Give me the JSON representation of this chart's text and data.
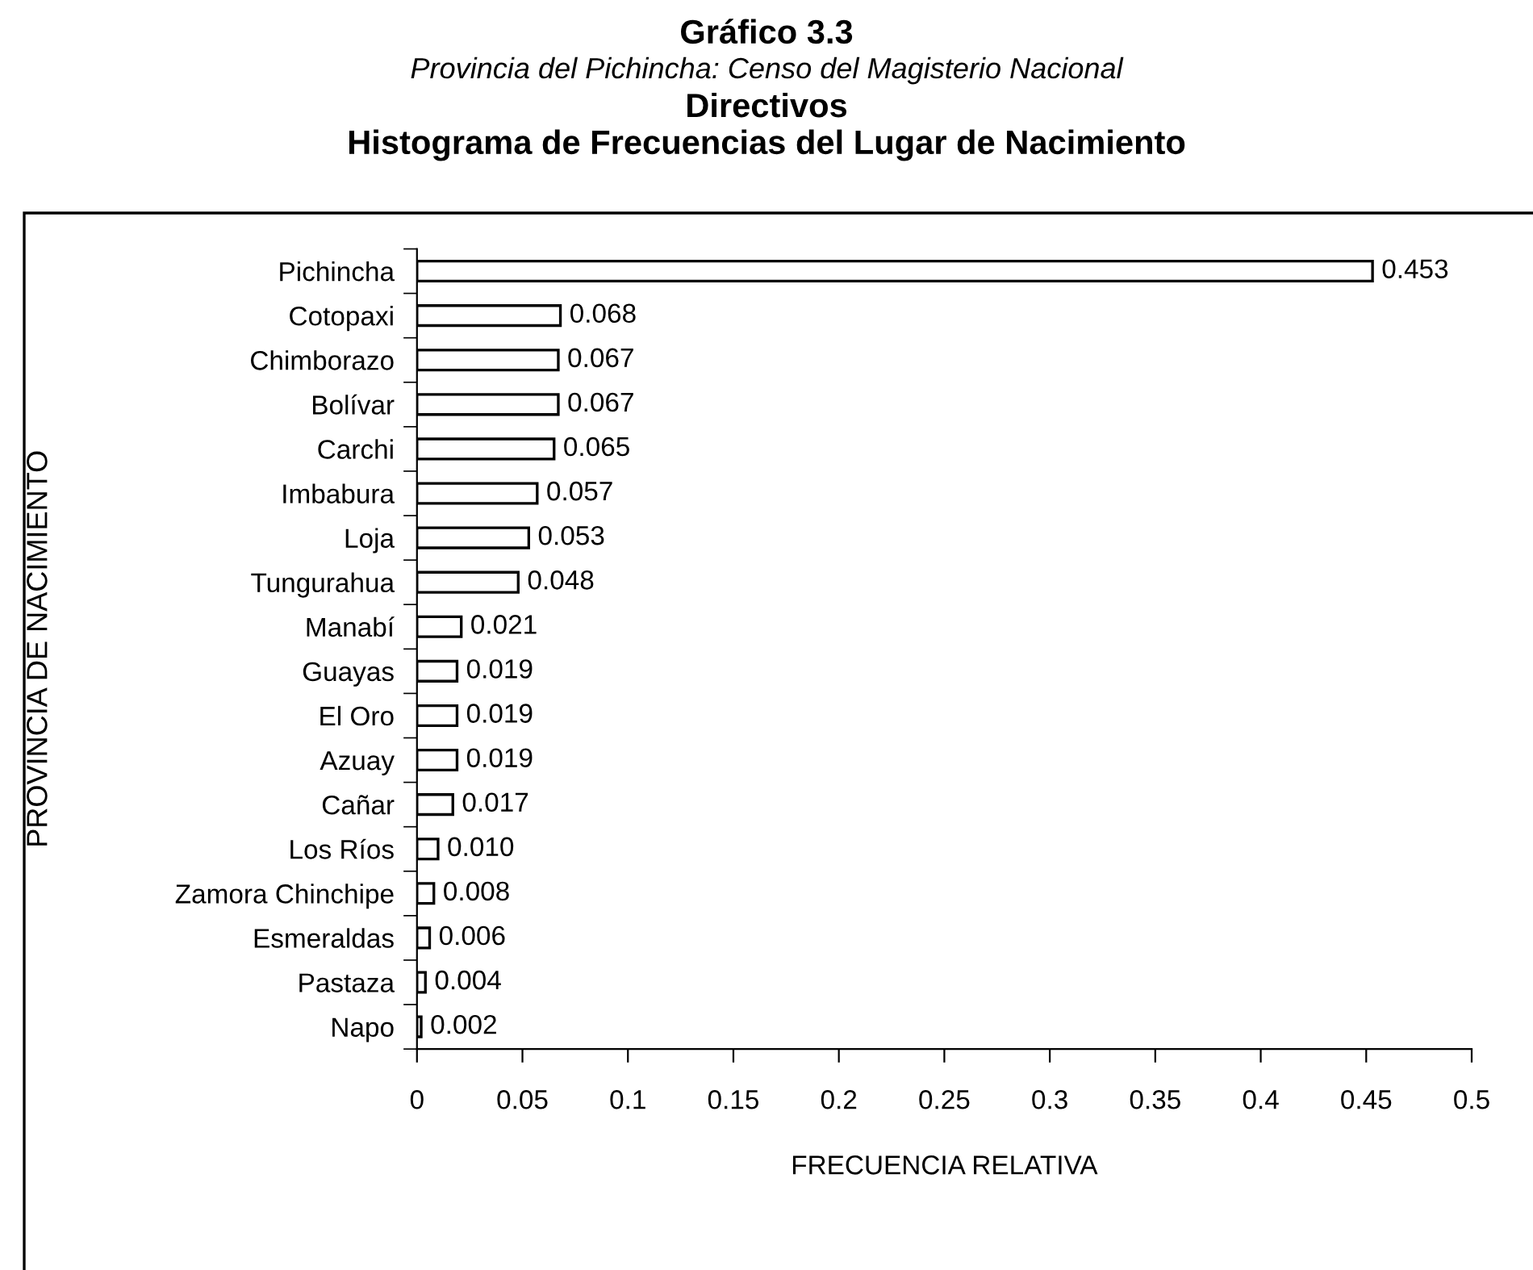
{
  "chart_data": {
    "type": "bar",
    "orientation": "horizontal",
    "title": "Gráfico 3.3",
    "subtitle": "Provincia del Pichincha: Censo del Magisterio Nacional",
    "annotations": [
      "Directivos",
      "Histograma de Frecuencias del Lugar de Nacimiento"
    ],
    "xlabel": "FRECUENCIA RELATIVA",
    "ylabel": "PROVINCIA DE NACIMIENTO",
    "categories": [
      "Pichincha",
      "Cotopaxi",
      "Chimborazo",
      "Bolívar",
      "Carchi",
      "Imbabura",
      "Loja",
      "Tungurahua",
      "Manabí",
      "Guayas",
      "El Oro",
      "Azuay",
      "Cañar",
      "Los Ríos",
      "Zamora Chinchipe",
      "Esmeraldas",
      "Pastaza",
      "Napo"
    ],
    "values": [
      0.453,
      0.068,
      0.067,
      0.067,
      0.065,
      0.057,
      0.053,
      0.048,
      0.021,
      0.019,
      0.019,
      0.019,
      0.017,
      0.01,
      0.008,
      0.006,
      0.004,
      0.002
    ],
    "value_labels": [
      "0.453",
      "0.068",
      "0.067",
      "0.067",
      "0.065",
      "0.057",
      "0.053",
      "0.048",
      "0.021",
      "0.019",
      "0.019",
      "0.019",
      "0.017",
      "0.010",
      "0.008",
      "0.006",
      "0.004",
      "0.002"
    ],
    "color": "#ffffff",
    "xlim": [
      0,
      0.5
    ],
    "xticks": [
      0,
      0.05,
      0.1,
      0.15,
      0.2,
      0.25,
      0.3,
      0.35,
      0.4,
      0.45,
      0.5
    ],
    "grid": false,
    "legend": false
  }
}
